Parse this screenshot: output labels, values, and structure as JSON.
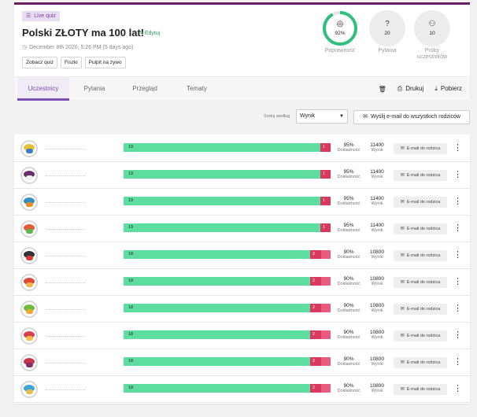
{
  "header": {
    "badge_label": "Live quiz",
    "title": "Polski ZŁOTY ma 100 lat!",
    "edit_label": "Edytuj",
    "date": "December 8th 2020, 5:26 PM (5 days ago)",
    "buttons": {
      "view_quiz": "Zobacz quiz",
      "flashcards": "Fiszki",
      "live_dashboard": "Pulpit na żywo"
    }
  },
  "stats": {
    "accuracy": {
      "value": "92%",
      "label": "Poprawność",
      "fraction": 0.92
    },
    "questions": {
      "value": "20",
      "label": "Pytania"
    },
    "attempts": {
      "value": "10",
      "label": "Próby uczestników"
    }
  },
  "tabs": [
    "Uczestnicy",
    "Pytania",
    "Przegląd",
    "Tematy"
  ],
  "actions": {
    "print": "Drukuj",
    "download": "Pobierz"
  },
  "toolbar": {
    "sort_label": "Sortuj według",
    "sort_value": "Wynik",
    "email_all": "Wyślij e-mail do wszystkich rodziców"
  },
  "labels": {
    "accuracy_sub": "Dokładność",
    "score_sub": "Wynik",
    "email_parent": "E-mail do rodzica"
  },
  "participants": [
    {
      "correct": 19,
      "incorrect": 1,
      "accuracy": "95%",
      "score": "11400",
      "c1": "#e8c03a",
      "c2": "#3b7ec6"
    },
    {
      "correct": 19,
      "incorrect": 1,
      "accuracy": "95%",
      "score": "11400",
      "c1": "#6b2f6b",
      "c2": "#f0f0f0"
    },
    {
      "correct": 19,
      "incorrect": 1,
      "accuracy": "95%",
      "score": "11400",
      "c1": "#2f8fbf",
      "c2": "#f08a2a"
    },
    {
      "correct": 19,
      "incorrect": 1,
      "accuracy": "95%",
      "score": "11400",
      "c1": "#e35b3a",
      "c2": "#58b84a"
    },
    {
      "correct": 18,
      "incorrect": 2,
      "accuracy": "90%",
      "score": "10800",
      "c1": "#333333",
      "c2": "#d83a3a"
    },
    {
      "correct": 18,
      "incorrect": 2,
      "accuracy": "90%",
      "score": "10800",
      "c1": "#e0483a",
      "c2": "#f2b64a"
    },
    {
      "correct": 18,
      "incorrect": 2,
      "accuracy": "90%",
      "score": "10800",
      "c1": "#6fbd3f",
      "c2": "#f0a830"
    },
    {
      "correct": 18,
      "incorrect": 2,
      "accuracy": "90%",
      "score": "10800",
      "c1": "#d93f4f",
      "c2": "#f2c04a"
    },
    {
      "correct": 18,
      "incorrect": 2,
      "accuracy": "90%",
      "score": "10800",
      "c1": "#c8344a",
      "c2": "#8a2d6b"
    },
    {
      "correct": 18,
      "incorrect": 2,
      "accuracy": "90%",
      "score": "10800",
      "c1": "#3fa6d8",
      "c2": "#e8c04a"
    }
  ],
  "colors": {
    "accent": "#7b4fb2",
    "correct": "#5edda0",
    "incorrect": "#e95a80",
    "ring": "#2fbf7f"
  }
}
